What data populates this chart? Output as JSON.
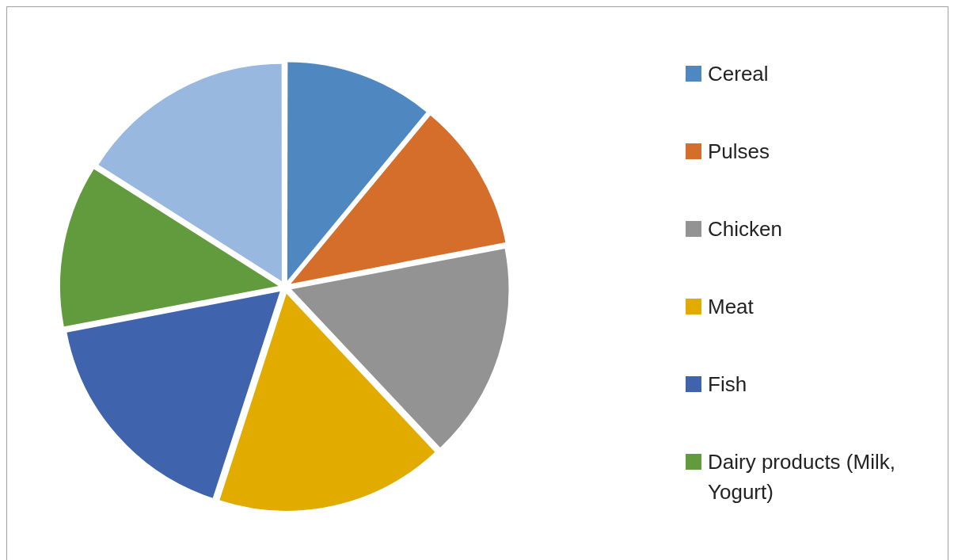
{
  "chart_data": {
    "type": "pie",
    "categories": [
      "Cereal",
      "Pulses",
      "Chicken",
      "Meat",
      "Fish",
      "Dairy products (Milk, Yogurt)",
      null
    ],
    "values": [
      11,
      11,
      16,
      17,
      17,
      12,
      16
    ],
    "colors": [
      "#4f88c0",
      "#d46e2a",
      "#939393",
      "#e2ab00",
      "#3f63ac",
      "#629a3e",
      "#99b8e0"
    ],
    "legend": "right"
  }
}
